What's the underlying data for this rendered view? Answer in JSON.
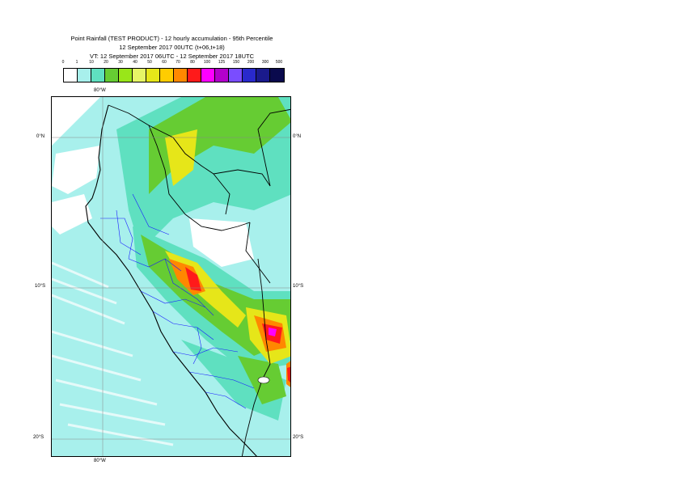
{
  "title": {
    "line1": "Point Rainfall (TEST PRODUCT) - 12 hourly accumulation - 95th Percentile",
    "line2": "12 September 2017 00UTC (t+06,t+18)",
    "line3": "VT: 12 September 2017 06UTC - 12 September 2017 18UTC"
  },
  "legend": {
    "ticks": [
      "0",
      "1",
      "10",
      "20",
      "30",
      "40",
      "50",
      "60",
      "70",
      "80",
      "100",
      "125",
      "150",
      "200",
      "300",
      "500"
    ],
    "colors": [
      "#ffffff",
      "#a8f0ec",
      "#5fe0c0",
      "#66cc33",
      "#99e619",
      "#e6f566",
      "#e6e619",
      "#ffcc00",
      "#ff8800",
      "#ff1a1a",
      "#ff00ff",
      "#b300cc",
      "#7a4dff",
      "#2929cc",
      "#1a1a8c",
      "#0a0a4d"
    ]
  },
  "map": {
    "lon_labels": [
      "80°W",
      "80°W"
    ],
    "lat_labels": [
      "0°N",
      "0°N",
      "10°S",
      "10°S",
      "20°S",
      "20°S"
    ],
    "colors": {
      "land_base": "#a8f0ec",
      "ocean": "#a8f0ec",
      "dry": "#ffffff",
      "light": "#5fe0c0",
      "moderate": "#66cc33",
      "heavy": "#e6e619",
      "intense": "#ff8800",
      "extreme": "#ff1a1a",
      "peak": "#ff00ff",
      "coast": "#000000",
      "admin": "#1a1aff"
    }
  }
}
